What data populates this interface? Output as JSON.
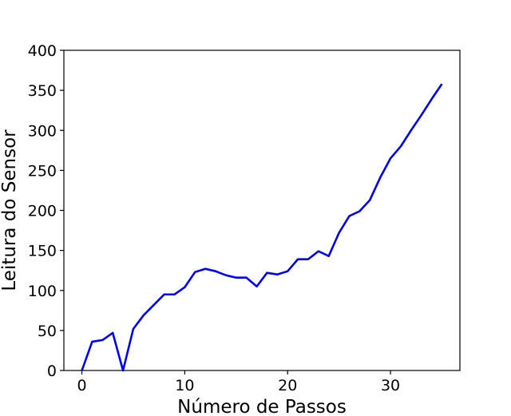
{
  "chart_data": {
    "type": "line",
    "title": "",
    "xlabel": "Número de Passos",
    "ylabel": "Leitura do Sensor",
    "xlim": [
      -1.75,
      36.75
    ],
    "ylim": [
      0,
      400
    ],
    "xticks": [
      0,
      10,
      20,
      30
    ],
    "yticks": [
      0,
      50,
      100,
      150,
      200,
      250,
      300,
      350,
      400
    ],
    "grid": false,
    "legend": "none",
    "series": [
      {
        "color": "#0000ff",
        "x": [
          0,
          1,
          2,
          3,
          4,
          5,
          6,
          7,
          8,
          9,
          10,
          11,
          12,
          13,
          14,
          15,
          16,
          17,
          18,
          19,
          20,
          21,
          22,
          23,
          24,
          25,
          26,
          27,
          28,
          29,
          30,
          31,
          32,
          33,
          34,
          35
        ],
        "y": [
          0,
          36,
          38,
          47,
          0,
          52,
          69,
          82,
          95,
          95,
          104,
          123,
          127,
          124,
          119,
          116,
          116,
          105,
          122,
          120,
          124,
          139,
          139,
          149,
          143,
          172,
          193,
          199,
          213,
          241,
          265,
          280,
          300,
          319,
          339,
          358
        ]
      }
    ]
  }
}
